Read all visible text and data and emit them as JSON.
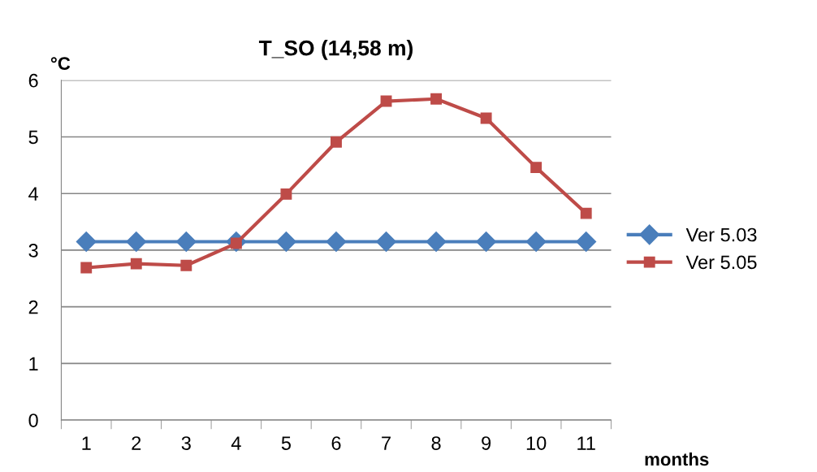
{
  "chart_data": {
    "type": "line",
    "title": "T_SO (14,58 m)",
    "ylabel": "°C",
    "xlabel": "months",
    "categories": [
      "1",
      "2",
      "3",
      "4",
      "5",
      "6",
      "7",
      "8",
      "9",
      "10",
      "11"
    ],
    "series": [
      {
        "name": "Ver 5.03",
        "color": "#4a7ebb",
        "marker": "diamond",
        "values": [
          3.15,
          3.15,
          3.15,
          3.15,
          3.15,
          3.15,
          3.15,
          3.15,
          3.15,
          3.15,
          3.15
        ]
      },
      {
        "name": "Ver 5.05",
        "color": "#be4b48",
        "marker": "square",
        "values": [
          2.69,
          2.76,
          2.73,
          3.12,
          3.99,
          4.91,
          5.63,
          5.67,
          5.33,
          4.46,
          3.65
        ]
      }
    ],
    "ylim": [
      0,
      6
    ],
    "yticks": [
      0,
      1,
      2,
      3,
      4,
      5,
      6
    ],
    "grid": "y",
    "legend": "right",
    "line_style": "solid"
  }
}
